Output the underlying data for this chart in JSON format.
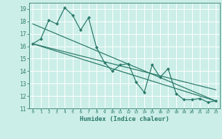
{
  "xlabel": "Humidex (Indice chaleur)",
  "bg_color": "#cceee8",
  "grid_color": "#ffffff",
  "line_color": "#2a7a6a",
  "xlim": [
    -0.5,
    23.5
  ],
  "ylim": [
    11,
    19.5
  ],
  "yticks": [
    11,
    12,
    13,
    14,
    15,
    16,
    17,
    18,
    19
  ],
  "xticks": [
    0,
    1,
    2,
    3,
    4,
    5,
    6,
    7,
    8,
    9,
    10,
    11,
    12,
    13,
    14,
    15,
    16,
    17,
    18,
    19,
    20,
    21,
    22,
    23
  ],
  "series1_x": [
    0,
    1,
    2,
    3,
    4,
    5,
    6,
    7,
    8,
    9,
    10,
    11,
    12,
    13,
    14,
    15,
    16,
    17,
    18,
    19,
    20,
    21,
    22,
    23
  ],
  "series1_y": [
    16.2,
    16.6,
    18.1,
    17.8,
    19.1,
    18.5,
    17.3,
    18.3,
    15.9,
    14.7,
    14.0,
    14.5,
    14.6,
    13.1,
    12.3,
    14.5,
    13.5,
    14.2,
    12.2,
    11.7,
    11.7,
    11.8,
    11.5,
    11.6
  ],
  "trend1_x": [
    0,
    23
  ],
  "trend1_y": [
    16.2,
    11.6
  ],
  "trend2_x": [
    0,
    23
  ],
  "trend2_y": [
    17.8,
    11.6
  ],
  "trend3_x": [
    0,
    23
  ],
  "trend3_y": [
    16.2,
    12.5
  ]
}
